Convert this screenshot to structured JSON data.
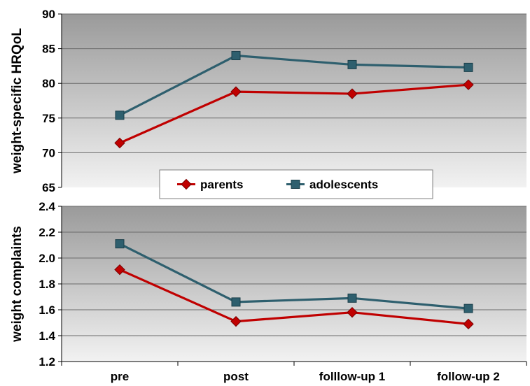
{
  "chart_data": [
    {
      "type": "line",
      "ylabel": "weight-specific HRQoL",
      "categories": [
        "pre",
        "post",
        "folllow-up 1",
        "follow-up 2"
      ],
      "ylim": [
        65,
        90
      ],
      "yticks": [
        "65",
        "70",
        "75",
        "80",
        "85",
        "90"
      ],
      "grid": true,
      "series": [
        {
          "name": "parents",
          "values": [
            71.4,
            78.8,
            78.5,
            79.8
          ],
          "color": "#c00000",
          "marker": "diamond"
        },
        {
          "name": "adolescents",
          "values": [
            75.4,
            84.0,
            82.7,
            82.3
          ],
          "color": "#2e5f6e",
          "marker": "square"
        }
      ]
    },
    {
      "type": "line",
      "ylabel": "weight complaints",
      "categories": [
        "pre",
        "post",
        "folllow-up 1",
        "follow-up 2"
      ],
      "ylim": [
        1.2,
        2.4
      ],
      "yticks": [
        "1.2",
        "1.4",
        "1.6",
        "1.8",
        "2.0",
        "2.2",
        "2.4"
      ],
      "grid": true,
      "series": [
        {
          "name": "parents",
          "values": [
            1.91,
            1.51,
            1.58,
            1.49
          ],
          "color": "#c00000",
          "marker": "diamond"
        },
        {
          "name": "adolescents",
          "values": [
            2.11,
            1.66,
            1.69,
            1.61
          ],
          "color": "#2e5f6e",
          "marker": "square"
        }
      ]
    }
  ],
  "legend": {
    "placement": "between-panels",
    "items": [
      {
        "label": "parents",
        "color": "#c00000",
        "marker": "diamond"
      },
      {
        "label": "adolescents",
        "color": "#2e5f6e",
        "marker": "square"
      }
    ]
  }
}
